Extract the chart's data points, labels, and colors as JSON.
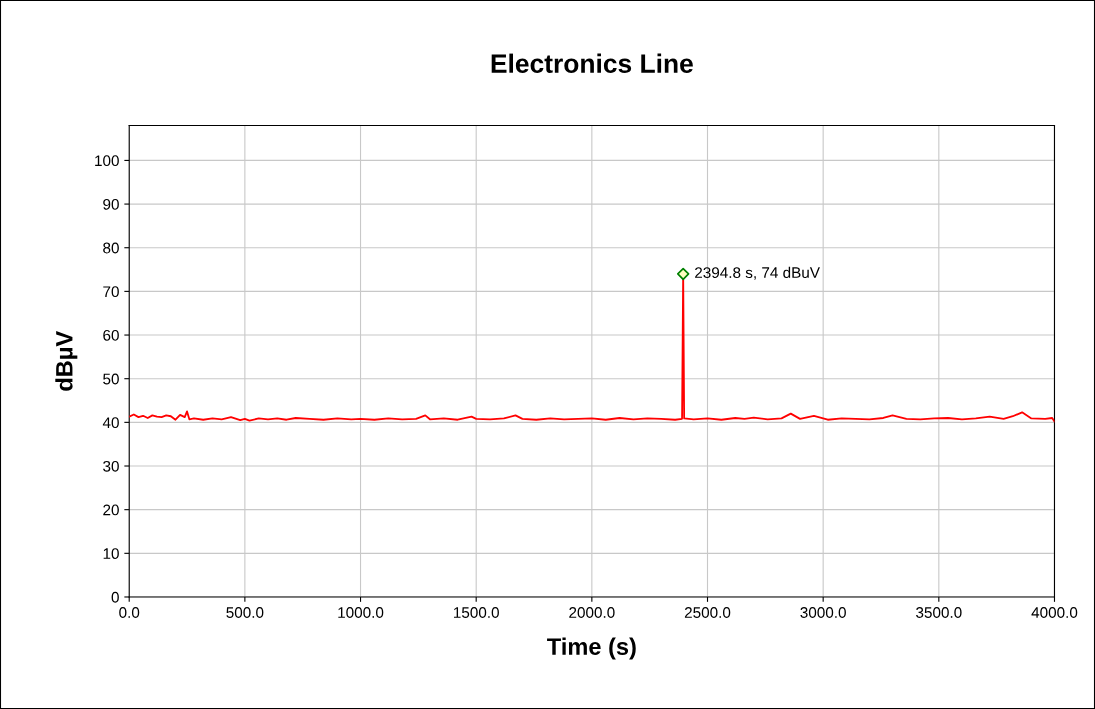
{
  "chart_data": {
    "type": "line",
    "title": "Electronics Line",
    "xlabel": "Time (s)",
    "ylabel": "dBµV",
    "xlim": [
      0,
      4000
    ],
    "xticks": [
      {
        "value": 0,
        "label": "0.0"
      },
      {
        "value": 500,
        "label": "500.0"
      },
      {
        "value": 1000,
        "label": "1000.0"
      },
      {
        "value": 1500,
        "label": "1500.0"
      },
      {
        "value": 2000,
        "label": "2000.0"
      },
      {
        "value": 2500,
        "label": "2500.0"
      },
      {
        "value": 3000,
        "label": "3000.0"
      },
      {
        "value": 3500,
        "label": "3500.0"
      },
      {
        "value": 4000,
        "label": "4000.0"
      }
    ],
    "ylim": [
      0,
      108
    ],
    "yticks": [
      0,
      10,
      20,
      30,
      40,
      50,
      60,
      70,
      80,
      90,
      100
    ],
    "grid": true,
    "legend": false,
    "series": [
      {
        "color": "#ff0000",
        "marker": "none",
        "x": [
          0,
          20,
          40,
          60,
          80,
          100,
          120,
          140,
          160,
          180,
          200,
          220,
          240,
          250,
          260,
          280,
          320,
          360,
          400,
          440,
          480,
          500,
          520,
          560,
          600,
          640,
          680,
          720,
          780,
          840,
          900,
          960,
          1000,
          1060,
          1120,
          1180,
          1240,
          1280,
          1300,
          1360,
          1420,
          1480,
          1500,
          1560,
          1620,
          1670,
          1700,
          1760,
          1820,
          1880,
          1940,
          2000,
          2060,
          2120,
          2180,
          2240,
          2300,
          2360,
          2390,
          2394.8,
          2399,
          2440,
          2500,
          2560,
          2620,
          2660,
          2700,
          2760,
          2820,
          2860,
          2900,
          2960,
          3020,
          3080,
          3140,
          3200,
          3260,
          3300,
          3360,
          3420,
          3480,
          3540,
          3600,
          3660,
          3720,
          3780,
          3820,
          3860,
          3900,
          3960,
          3990,
          4000
        ],
        "values": [
          41.3,
          41.8,
          41.2,
          41.5,
          41.0,
          41.6,
          41.3,
          41.2,
          41.6,
          41.4,
          40.6,
          41.7,
          41.2,
          42.5,
          40.7,
          40.9,
          40.6,
          40.9,
          40.7,
          41.2,
          40.5,
          40.8,
          40.4,
          40.9,
          40.7,
          40.9,
          40.6,
          41.0,
          40.8,
          40.6,
          40.9,
          40.7,
          40.8,
          40.6,
          40.9,
          40.7,
          40.8,
          41.6,
          40.7,
          40.9,
          40.6,
          41.3,
          40.8,
          40.7,
          40.9,
          41.6,
          40.8,
          40.6,
          40.9,
          40.7,
          40.8,
          40.9,
          40.6,
          41.0,
          40.7,
          40.9,
          40.8,
          40.6,
          40.8,
          74,
          40.9,
          40.7,
          40.9,
          40.6,
          41.0,
          40.8,
          41.1,
          40.7,
          40.9,
          42.0,
          40.8,
          41.5,
          40.6,
          40.9,
          40.8,
          40.7,
          41.0,
          41.6,
          40.8,
          40.7,
          40.9,
          41.0,
          40.7,
          40.9,
          41.3,
          40.8,
          41.4,
          42.3,
          40.9,
          40.8,
          41.0,
          40.2
        ]
      },
      {
        "color": "#008000",
        "type": "scatter",
        "marker": "diamond",
        "x": [
          2394.8
        ],
        "values": [
          74
        ]
      }
    ],
    "annotations": [
      {
        "text": "2394.8 s, 74 dBuV",
        "x": 2394.8,
        "y": 74
      }
    ]
  }
}
